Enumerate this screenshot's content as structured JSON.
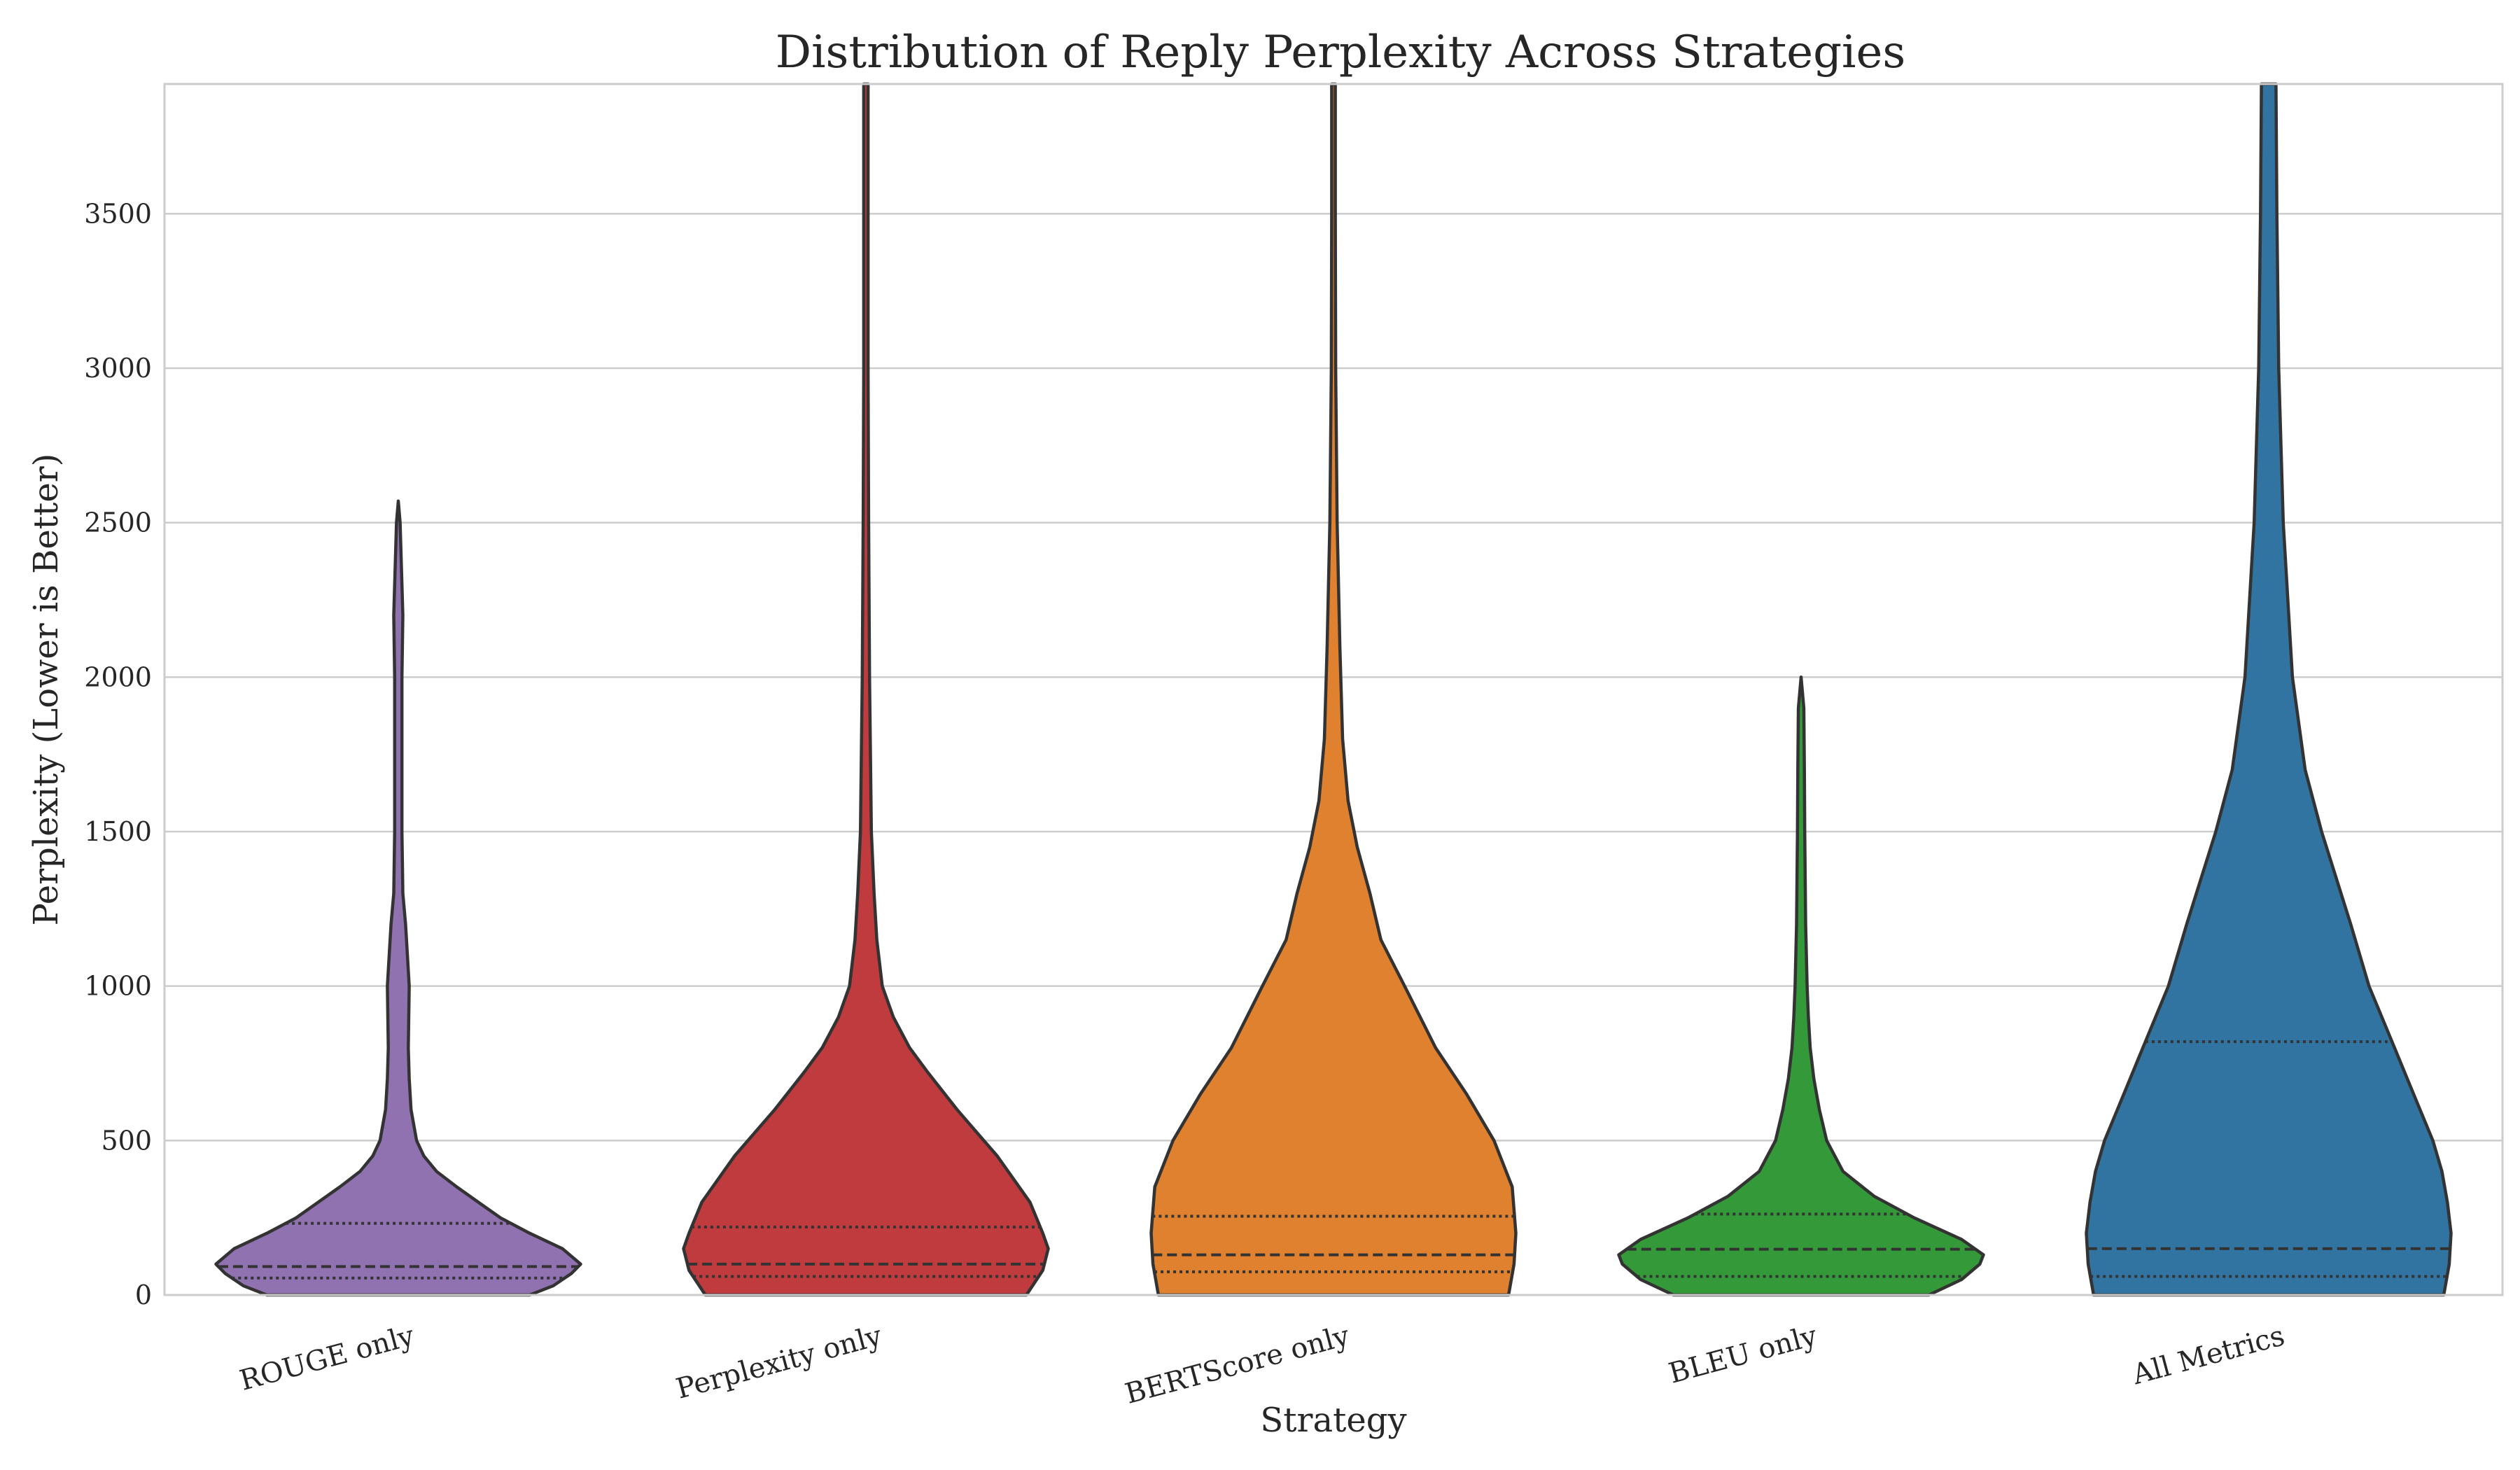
{
  "chart_data": {
    "type": "violin",
    "title": "Distribution of Reply Perplexity Across Strategies",
    "xlabel": "Strategy",
    "ylabel": "Perplexity (Lower is Better)",
    "ylim": [
      0,
      3920
    ],
    "yticks": [
      0,
      500,
      1000,
      1500,
      2000,
      2500,
      3000,
      3500
    ],
    "grid": true,
    "categories": [
      "ROUGE only",
      "Perplexity only",
      "BERTScore only",
      "BLEU only",
      "All Metrics"
    ],
    "series": [
      {
        "category": "ROUGE only",
        "color": "#9172b0",
        "quartiles": {
          "q1": 55,
          "median": 92,
          "q3": 232
        },
        "max": 2570,
        "density_width": [
          [
            0,
            0.72
          ],
          [
            30,
            0.85
          ],
          [
            70,
            0.95
          ],
          [
            100,
            1.0
          ],
          [
            150,
            0.9
          ],
          [
            200,
            0.72
          ],
          [
            250,
            0.56
          ],
          [
            300,
            0.44
          ],
          [
            350,
            0.32
          ],
          [
            400,
            0.21
          ],
          [
            450,
            0.14
          ],
          [
            500,
            0.1
          ],
          [
            600,
            0.07
          ],
          [
            700,
            0.06
          ],
          [
            800,
            0.055
          ],
          [
            1000,
            0.06
          ],
          [
            1100,
            0.05
          ],
          [
            1200,
            0.04
          ],
          [
            1300,
            0.025
          ],
          [
            1500,
            0.02
          ],
          [
            2000,
            0.02
          ],
          [
            2200,
            0.025
          ],
          [
            2300,
            0.02
          ],
          [
            2500,
            0.01
          ],
          [
            2570,
            0.0
          ]
        ]
      },
      {
        "category": "Perplexity only",
        "color": "#bf3b3d",
        "quartiles": {
          "q1": 60,
          "median": 100,
          "q3": 220
        },
        "max": 3920,
        "density_width": [
          [
            0,
            0.88
          ],
          [
            80,
            0.97
          ],
          [
            150,
            1.0
          ],
          [
            200,
            0.97
          ],
          [
            300,
            0.9
          ],
          [
            450,
            0.72
          ],
          [
            600,
            0.5
          ],
          [
            720,
            0.34
          ],
          [
            800,
            0.24
          ],
          [
            900,
            0.15
          ],
          [
            1000,
            0.09
          ],
          [
            1150,
            0.06
          ],
          [
            1300,
            0.045
          ],
          [
            1500,
            0.03
          ],
          [
            2000,
            0.02
          ],
          [
            2500,
            0.015
          ],
          [
            3000,
            0.012
          ],
          [
            3920,
            0.012
          ]
        ]
      },
      {
        "category": "BERTScore only",
        "color": "#e0812f",
        "quartiles": {
          "q1": 75,
          "median": 130,
          "q3": 255
        },
        "max": 3920,
        "density_width": [
          [
            0,
            0.96
          ],
          [
            100,
            0.99
          ],
          [
            200,
            1.0
          ],
          [
            350,
            0.98
          ],
          [
            500,
            0.88
          ],
          [
            650,
            0.73
          ],
          [
            800,
            0.56
          ],
          [
            1000,
            0.39
          ],
          [
            1150,
            0.26
          ],
          [
            1300,
            0.2
          ],
          [
            1450,
            0.13
          ],
          [
            1600,
            0.08
          ],
          [
            1800,
            0.05
          ],
          [
            2100,
            0.035
          ],
          [
            2500,
            0.02
          ],
          [
            3000,
            0.012
          ],
          [
            3500,
            0.01
          ],
          [
            3920,
            0.01
          ]
        ]
      },
      {
        "category": "BLEU only",
        "color": "#349a39",
        "quartiles": {
          "q1": 60,
          "median": 148,
          "q3": 262
        },
        "max": 2000,
        "density_width": [
          [
            0,
            0.7
          ],
          [
            50,
            0.88
          ],
          [
            100,
            0.98
          ],
          [
            130,
            1.0
          ],
          [
            180,
            0.88
          ],
          [
            250,
            0.62
          ],
          [
            320,
            0.4
          ],
          [
            400,
            0.23
          ],
          [
            500,
            0.14
          ],
          [
            600,
            0.1
          ],
          [
            700,
            0.07
          ],
          [
            800,
            0.05
          ],
          [
            900,
            0.04
          ],
          [
            1000,
            0.033
          ],
          [
            1200,
            0.025
          ],
          [
            1500,
            0.02
          ],
          [
            1700,
            0.018
          ],
          [
            1900,
            0.015
          ],
          [
            2000,
            0.0
          ]
        ]
      },
      {
        "category": "All Metrics",
        "color": "#3274a1",
        "quartiles": {
          "q1": 60,
          "median": 150,
          "q3": 820
        },
        "max": 3920,
        "density_width": [
          [
            0,
            0.96
          ],
          [
            100,
            0.99
          ],
          [
            200,
            1.0
          ],
          [
            300,
            0.98
          ],
          [
            400,
            0.95
          ],
          [
            500,
            0.9
          ],
          [
            600,
            0.83
          ],
          [
            700,
            0.76
          ],
          [
            800,
            0.69
          ],
          [
            1000,
            0.55
          ],
          [
            1200,
            0.45
          ],
          [
            1500,
            0.29
          ],
          [
            1700,
            0.2
          ],
          [
            2000,
            0.13
          ],
          [
            2500,
            0.08
          ],
          [
            3000,
            0.055
          ],
          [
            3500,
            0.045
          ],
          [
            3920,
            0.04
          ]
        ]
      }
    ]
  }
}
